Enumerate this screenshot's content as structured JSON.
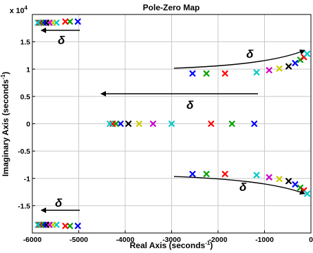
{
  "chart_data": {
    "type": "scatter",
    "title": "Pole-Zero Map",
    "xlabel": "Real Axis (seconds",
    "xlabel_sup": "-1",
    "xlabel_end": ")",
    "ylabel": "Imaginary Axis (seconds",
    "ylabel_sup": "-1",
    "ylabel_end": ")",
    "exponent_label": "x 10",
    "exponent_sup": "4",
    "xlim": [
      -6000,
      0
    ],
    "ylim": [
      -2.0,
      2.0
    ],
    "xticks": [
      -6000,
      -5000,
      -4000,
      -3000,
      -2000,
      -1000,
      0
    ],
    "xtick_labels": [
      "-6000",
      "-5000",
      "-4000",
      "-3000",
      "-2000",
      "-1000",
      "0"
    ],
    "yticks": [
      -1.5,
      -1,
      -0.5,
      0,
      0.5,
      1,
      1.5
    ],
    "ytick_labels": [
      "-1.5",
      "-1",
      "-0.5",
      "0",
      "0.5",
      "1",
      "1.5"
    ],
    "grid": true,
    "marker": "x",
    "points": [
      {
        "x": -5020,
        "y": 1.87,
        "color": "#0000ff"
      },
      {
        "x": -5190,
        "y": 1.87,
        "color": "#00a000"
      },
      {
        "x": -5290,
        "y": 1.87,
        "color": "#ff0000"
      },
      {
        "x": -5480,
        "y": 1.85,
        "color": "#00c8c8"
      },
      {
        "x": -5560,
        "y": 1.85,
        "color": "#cccc00"
      },
      {
        "x": -5630,
        "y": 1.85,
        "color": "#cc00cc"
      },
      {
        "x": -5700,
        "y": 1.85,
        "color": "#000000"
      },
      {
        "x": -5760,
        "y": 1.85,
        "color": "#0000ff"
      },
      {
        "x": -5810,
        "y": 1.85,
        "color": "#00a000"
      },
      {
        "x": -5850,
        "y": 1.85,
        "color": "#ff0000"
      },
      {
        "x": -5880,
        "y": 1.85,
        "color": "#00c8c8"
      },
      {
        "x": -5020,
        "y": -1.87,
        "color": "#0000ff"
      },
      {
        "x": -5190,
        "y": -1.87,
        "color": "#00a000"
      },
      {
        "x": -5290,
        "y": -1.87,
        "color": "#ff0000"
      },
      {
        "x": -5480,
        "y": -1.85,
        "color": "#00c8c8"
      },
      {
        "x": -5560,
        "y": -1.85,
        "color": "#cccc00"
      },
      {
        "x": -5630,
        "y": -1.85,
        "color": "#cc00cc"
      },
      {
        "x": -5700,
        "y": -1.85,
        "color": "#000000"
      },
      {
        "x": -5760,
        "y": -1.85,
        "color": "#0000ff"
      },
      {
        "x": -5810,
        "y": -1.85,
        "color": "#00a000"
      },
      {
        "x": -5850,
        "y": -1.85,
        "color": "#ff0000"
      },
      {
        "x": -5880,
        "y": -1.85,
        "color": "#00c8c8"
      },
      {
        "x": -1220,
        "y": 0,
        "color": "#0000ff"
      },
      {
        "x": -1700,
        "y": 0,
        "color": "#00a000"
      },
      {
        "x": -2150,
        "y": 0,
        "color": "#ff0000"
      },
      {
        "x": -3000,
        "y": 0,
        "color": "#00c8c8"
      },
      {
        "x": -3400,
        "y": 0,
        "color": "#cc00cc"
      },
      {
        "x": -3700,
        "y": 0,
        "color": "#cccc00"
      },
      {
        "x": -3930,
        "y": 0,
        "color": "#000000"
      },
      {
        "x": -4100,
        "y": 0,
        "color": "#0000ff"
      },
      {
        "x": -4200,
        "y": 0,
        "color": "#00a000"
      },
      {
        "x": -4270,
        "y": 0,
        "color": "#ff0000"
      },
      {
        "x": -4330,
        "y": 0,
        "color": "#00c8c8"
      },
      {
        "x": -2550,
        "y": 0.92,
        "color": "#0000ff"
      },
      {
        "x": -2250,
        "y": 0.92,
        "color": "#00a000"
      },
      {
        "x": -1850,
        "y": 0.92,
        "color": "#ff0000"
      },
      {
        "x": -1170,
        "y": 0.94,
        "color": "#00c8c8"
      },
      {
        "x": -900,
        "y": 0.98,
        "color": "#cc00cc"
      },
      {
        "x": -680,
        "y": 1.01,
        "color": "#cccc00"
      },
      {
        "x": -480,
        "y": 1.05,
        "color": "#000000"
      },
      {
        "x": -340,
        "y": 1.11,
        "color": "#0000ff"
      },
      {
        "x": -230,
        "y": 1.17,
        "color": "#00a000"
      },
      {
        "x": -150,
        "y": 1.22,
        "color": "#ff0000"
      },
      {
        "x": -80,
        "y": 1.28,
        "color": "#00c8c8"
      },
      {
        "x": -2550,
        "y": -0.92,
        "color": "#0000ff"
      },
      {
        "x": -2250,
        "y": -0.92,
        "color": "#00a000"
      },
      {
        "x": -1850,
        "y": -0.92,
        "color": "#ff0000"
      },
      {
        "x": -1170,
        "y": -0.94,
        "color": "#00c8c8"
      },
      {
        "x": -900,
        "y": -0.98,
        "color": "#cc00cc"
      },
      {
        "x": -680,
        "y": -1.01,
        "color": "#cccc00"
      },
      {
        "x": -480,
        "y": -1.05,
        "color": "#000000"
      },
      {
        "x": -340,
        "y": -1.11,
        "color": "#0000ff"
      },
      {
        "x": -230,
        "y": -1.17,
        "color": "#00a000"
      },
      {
        "x": -150,
        "y": -1.22,
        "color": "#ff0000"
      },
      {
        "x": -80,
        "y": -1.28,
        "color": "#00c8c8"
      }
    ],
    "annotations": [
      {
        "label": "δ",
        "kind": "arrow-left-top"
      },
      {
        "label": "δ",
        "kind": "arrow-curve-up"
      },
      {
        "label": "δ",
        "kind": "arrow-left-middle"
      },
      {
        "label": "δ",
        "kind": "arrow-curve-down"
      },
      {
        "label": "δ",
        "kind": "arrow-left-bottom"
      }
    ]
  }
}
